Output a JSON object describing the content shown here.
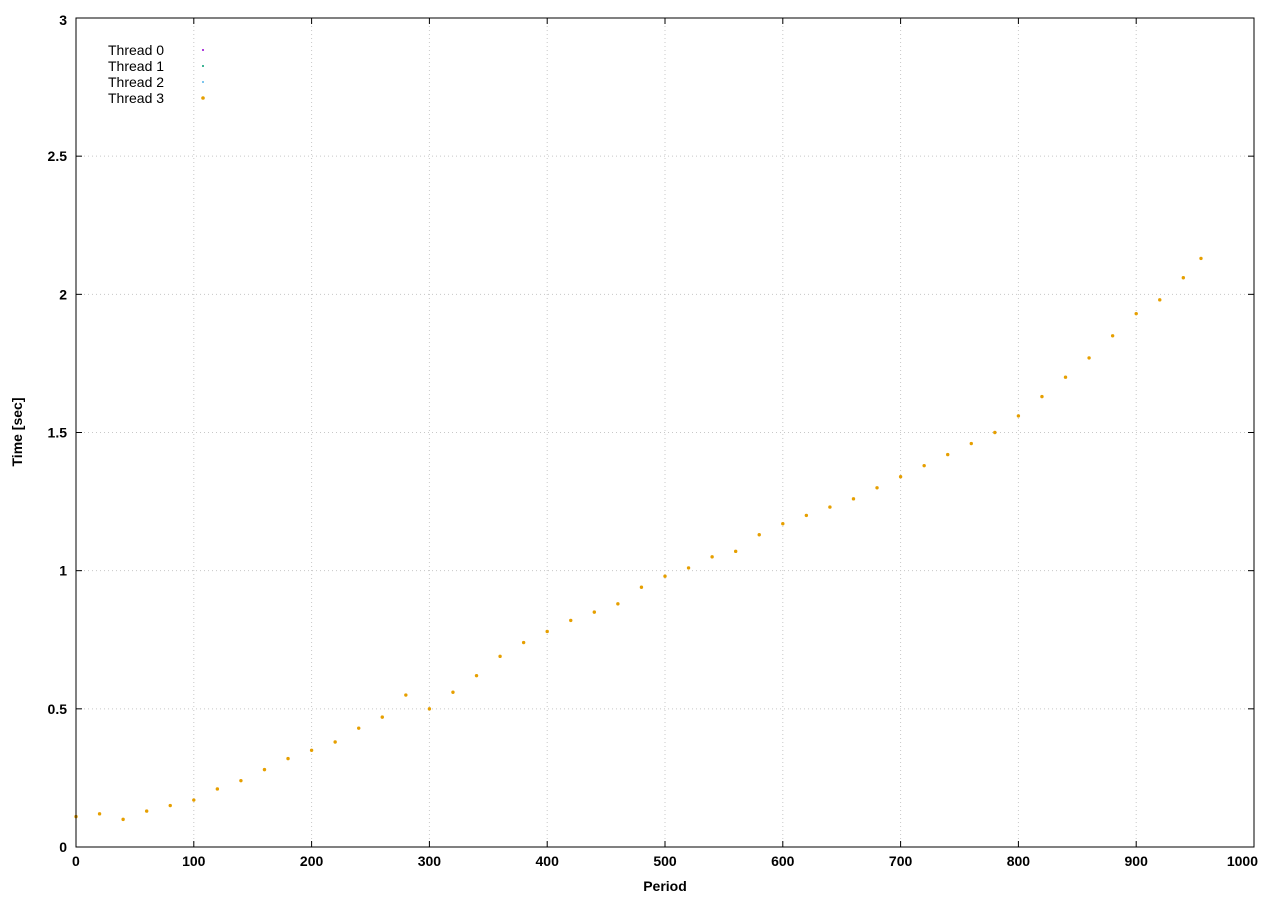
{
  "chart_data": {
    "type": "scatter",
    "title": "",
    "xlabel": "Period",
    "ylabel": "Time [sec]",
    "xlim": [
      0,
      1000
    ],
    "ylim": [
      0,
      3
    ],
    "x_ticks": [
      0,
      100,
      200,
      300,
      400,
      500,
      600,
      700,
      800,
      900,
      1000
    ],
    "x_tick_labels": [
      "0",
      "100",
      "200",
      "300",
      "400",
      "500",
      "600",
      "700",
      "800",
      "900",
      "1000"
    ],
    "y_ticks": [
      0,
      0.5,
      1,
      1.5,
      2,
      2.5,
      3
    ],
    "y_tick_labels": [
      "0",
      "0.5",
      "1",
      "1.5",
      "2",
      "2.5",
      "3"
    ],
    "grid": true,
    "legend_position": "top-left",
    "series": [
      {
        "name": "Thread 0",
        "color": "#9400d3",
        "points": [
          [
            0,
            0.11
          ],
          [
            20,
            0.12
          ],
          [
            40,
            0.1
          ],
          [
            60,
            0.13
          ],
          [
            80,
            0.15
          ],
          [
            100,
            0.17
          ],
          [
            120,
            0.21
          ],
          [
            140,
            0.24
          ],
          [
            160,
            0.28
          ],
          [
            180,
            0.32
          ],
          [
            200,
            0.35
          ],
          [
            220,
            0.38
          ],
          [
            240,
            0.43
          ],
          [
            260,
            0.47
          ],
          [
            280,
            0.55
          ],
          [
            300,
            0.5
          ],
          [
            320,
            0.56
          ],
          [
            340,
            0.62
          ],
          [
            360,
            0.69
          ],
          [
            380,
            0.74
          ],
          [
            400,
            0.78
          ],
          [
            420,
            0.82
          ],
          [
            440,
            0.85
          ],
          [
            460,
            0.88
          ],
          [
            480,
            0.94
          ],
          [
            500,
            0.98
          ],
          [
            520,
            1.01
          ],
          [
            540,
            1.05
          ],
          [
            560,
            1.07
          ],
          [
            580,
            1.13
          ],
          [
            600,
            1.17
          ],
          [
            620,
            1.2
          ],
          [
            640,
            1.23
          ],
          [
            660,
            1.26
          ],
          [
            680,
            1.3
          ],
          [
            700,
            1.34
          ],
          [
            720,
            1.38
          ],
          [
            740,
            1.42
          ],
          [
            760,
            1.46
          ],
          [
            780,
            1.5
          ],
          [
            800,
            1.56
          ],
          [
            820,
            1.63
          ],
          [
            840,
            1.7
          ],
          [
            860,
            1.77
          ],
          [
            880,
            1.85
          ],
          [
            900,
            1.93
          ],
          [
            920,
            1.98
          ],
          [
            940,
            2.06
          ],
          [
            955,
            2.13
          ]
        ]
      },
      {
        "name": "Thread 1",
        "color": "#009e73",
        "points": [
          [
            0,
            0.11
          ],
          [
            20,
            0.12
          ],
          [
            40,
            0.1
          ],
          [
            60,
            0.13
          ],
          [
            80,
            0.15
          ],
          [
            100,
            0.17
          ],
          [
            120,
            0.21
          ],
          [
            140,
            0.24
          ],
          [
            160,
            0.28
          ],
          [
            180,
            0.32
          ],
          [
            200,
            0.35
          ],
          [
            220,
            0.38
          ],
          [
            240,
            0.43
          ],
          [
            260,
            0.47
          ],
          [
            280,
            0.55
          ],
          [
            300,
            0.5
          ],
          [
            320,
            0.56
          ],
          [
            340,
            0.62
          ],
          [
            360,
            0.69
          ],
          [
            380,
            0.74
          ],
          [
            400,
            0.78
          ],
          [
            420,
            0.82
          ],
          [
            440,
            0.85
          ],
          [
            460,
            0.88
          ],
          [
            480,
            0.94
          ],
          [
            500,
            0.98
          ],
          [
            520,
            1.01
          ],
          [
            540,
            1.05
          ],
          [
            560,
            1.07
          ],
          [
            580,
            1.13
          ],
          [
            600,
            1.17
          ],
          [
            620,
            1.2
          ],
          [
            640,
            1.23
          ],
          [
            660,
            1.26
          ],
          [
            680,
            1.3
          ],
          [
            700,
            1.34
          ],
          [
            720,
            1.38
          ],
          [
            740,
            1.42
          ],
          [
            760,
            1.46
          ],
          [
            780,
            1.5
          ],
          [
            800,
            1.56
          ],
          [
            820,
            1.63
          ],
          [
            840,
            1.7
          ],
          [
            860,
            1.77
          ],
          [
            880,
            1.85
          ],
          [
            900,
            1.93
          ],
          [
            920,
            1.98
          ],
          [
            940,
            2.06
          ],
          [
            955,
            2.13
          ]
        ]
      },
      {
        "name": "Thread 2",
        "color": "#56b4e9",
        "points": [
          [
            0,
            0.11
          ],
          [
            20,
            0.12
          ],
          [
            40,
            0.1
          ],
          [
            60,
            0.13
          ],
          [
            80,
            0.15
          ],
          [
            100,
            0.17
          ],
          [
            120,
            0.21
          ],
          [
            140,
            0.24
          ],
          [
            160,
            0.28
          ],
          [
            180,
            0.32
          ],
          [
            200,
            0.35
          ],
          [
            220,
            0.38
          ],
          [
            240,
            0.43
          ],
          [
            260,
            0.47
          ],
          [
            280,
            0.55
          ],
          [
            300,
            0.5
          ],
          [
            320,
            0.56
          ],
          [
            340,
            0.62
          ],
          [
            360,
            0.69
          ],
          [
            380,
            0.74
          ],
          [
            400,
            0.78
          ],
          [
            420,
            0.82
          ],
          [
            440,
            0.85
          ],
          [
            460,
            0.88
          ],
          [
            480,
            0.94
          ],
          [
            500,
            0.98
          ],
          [
            520,
            1.01
          ],
          [
            540,
            1.05
          ],
          [
            560,
            1.07
          ],
          [
            580,
            1.13
          ],
          [
            600,
            1.17
          ],
          [
            620,
            1.2
          ],
          [
            640,
            1.23
          ],
          [
            660,
            1.26
          ],
          [
            680,
            1.3
          ],
          [
            700,
            1.34
          ],
          [
            720,
            1.38
          ],
          [
            740,
            1.42
          ],
          [
            760,
            1.46
          ],
          [
            780,
            1.5
          ],
          [
            800,
            1.56
          ],
          [
            820,
            1.63
          ],
          [
            840,
            1.7
          ],
          [
            860,
            1.77
          ],
          [
            880,
            1.85
          ],
          [
            900,
            1.93
          ],
          [
            920,
            1.98
          ],
          [
            940,
            2.06
          ],
          [
            955,
            2.13
          ]
        ]
      },
      {
        "name": "Thread 3",
        "color": "#e69f00",
        "points": [
          [
            0,
            0.11
          ],
          [
            20,
            0.12
          ],
          [
            40,
            0.1
          ],
          [
            60,
            0.13
          ],
          [
            80,
            0.15
          ],
          [
            100,
            0.17
          ],
          [
            120,
            0.21
          ],
          [
            140,
            0.24
          ],
          [
            160,
            0.28
          ],
          [
            180,
            0.32
          ],
          [
            200,
            0.35
          ],
          [
            220,
            0.38
          ],
          [
            240,
            0.43
          ],
          [
            260,
            0.47
          ],
          [
            280,
            0.55
          ],
          [
            300,
            0.5
          ],
          [
            320,
            0.56
          ],
          [
            340,
            0.62
          ],
          [
            360,
            0.69
          ],
          [
            380,
            0.74
          ],
          [
            400,
            0.78
          ],
          [
            420,
            0.82
          ],
          [
            440,
            0.85
          ],
          [
            460,
            0.88
          ],
          [
            480,
            0.94
          ],
          [
            500,
            0.98
          ],
          [
            520,
            1.01
          ],
          [
            540,
            1.05
          ],
          [
            560,
            1.07
          ],
          [
            580,
            1.13
          ],
          [
            600,
            1.17
          ],
          [
            620,
            1.2
          ],
          [
            640,
            1.23
          ],
          [
            660,
            1.26
          ],
          [
            680,
            1.3
          ],
          [
            700,
            1.34
          ],
          [
            720,
            1.38
          ],
          [
            740,
            1.42
          ],
          [
            760,
            1.46
          ],
          [
            780,
            1.5
          ],
          [
            800,
            1.56
          ],
          [
            820,
            1.63
          ],
          [
            840,
            1.7
          ],
          [
            860,
            1.77
          ],
          [
            880,
            1.85
          ],
          [
            900,
            1.93
          ],
          [
            920,
            1.98
          ],
          [
            940,
            2.06
          ],
          [
            955,
            2.13
          ]
        ]
      }
    ]
  }
}
